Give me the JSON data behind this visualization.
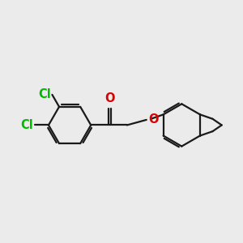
{
  "background_color": "#ebebeb",
  "bond_color": "#1a1a1a",
  "cl_color": "#00bb00",
  "o_color": "#dd0000",
  "bond_width": 1.6,
  "dbo": 0.08,
  "font_size_atom": 10.5,
  "fig_width": 3.0,
  "fig_height": 3.0,
  "xlim": [
    0,
    10
  ],
  "ylim": [
    2,
    8
  ]
}
